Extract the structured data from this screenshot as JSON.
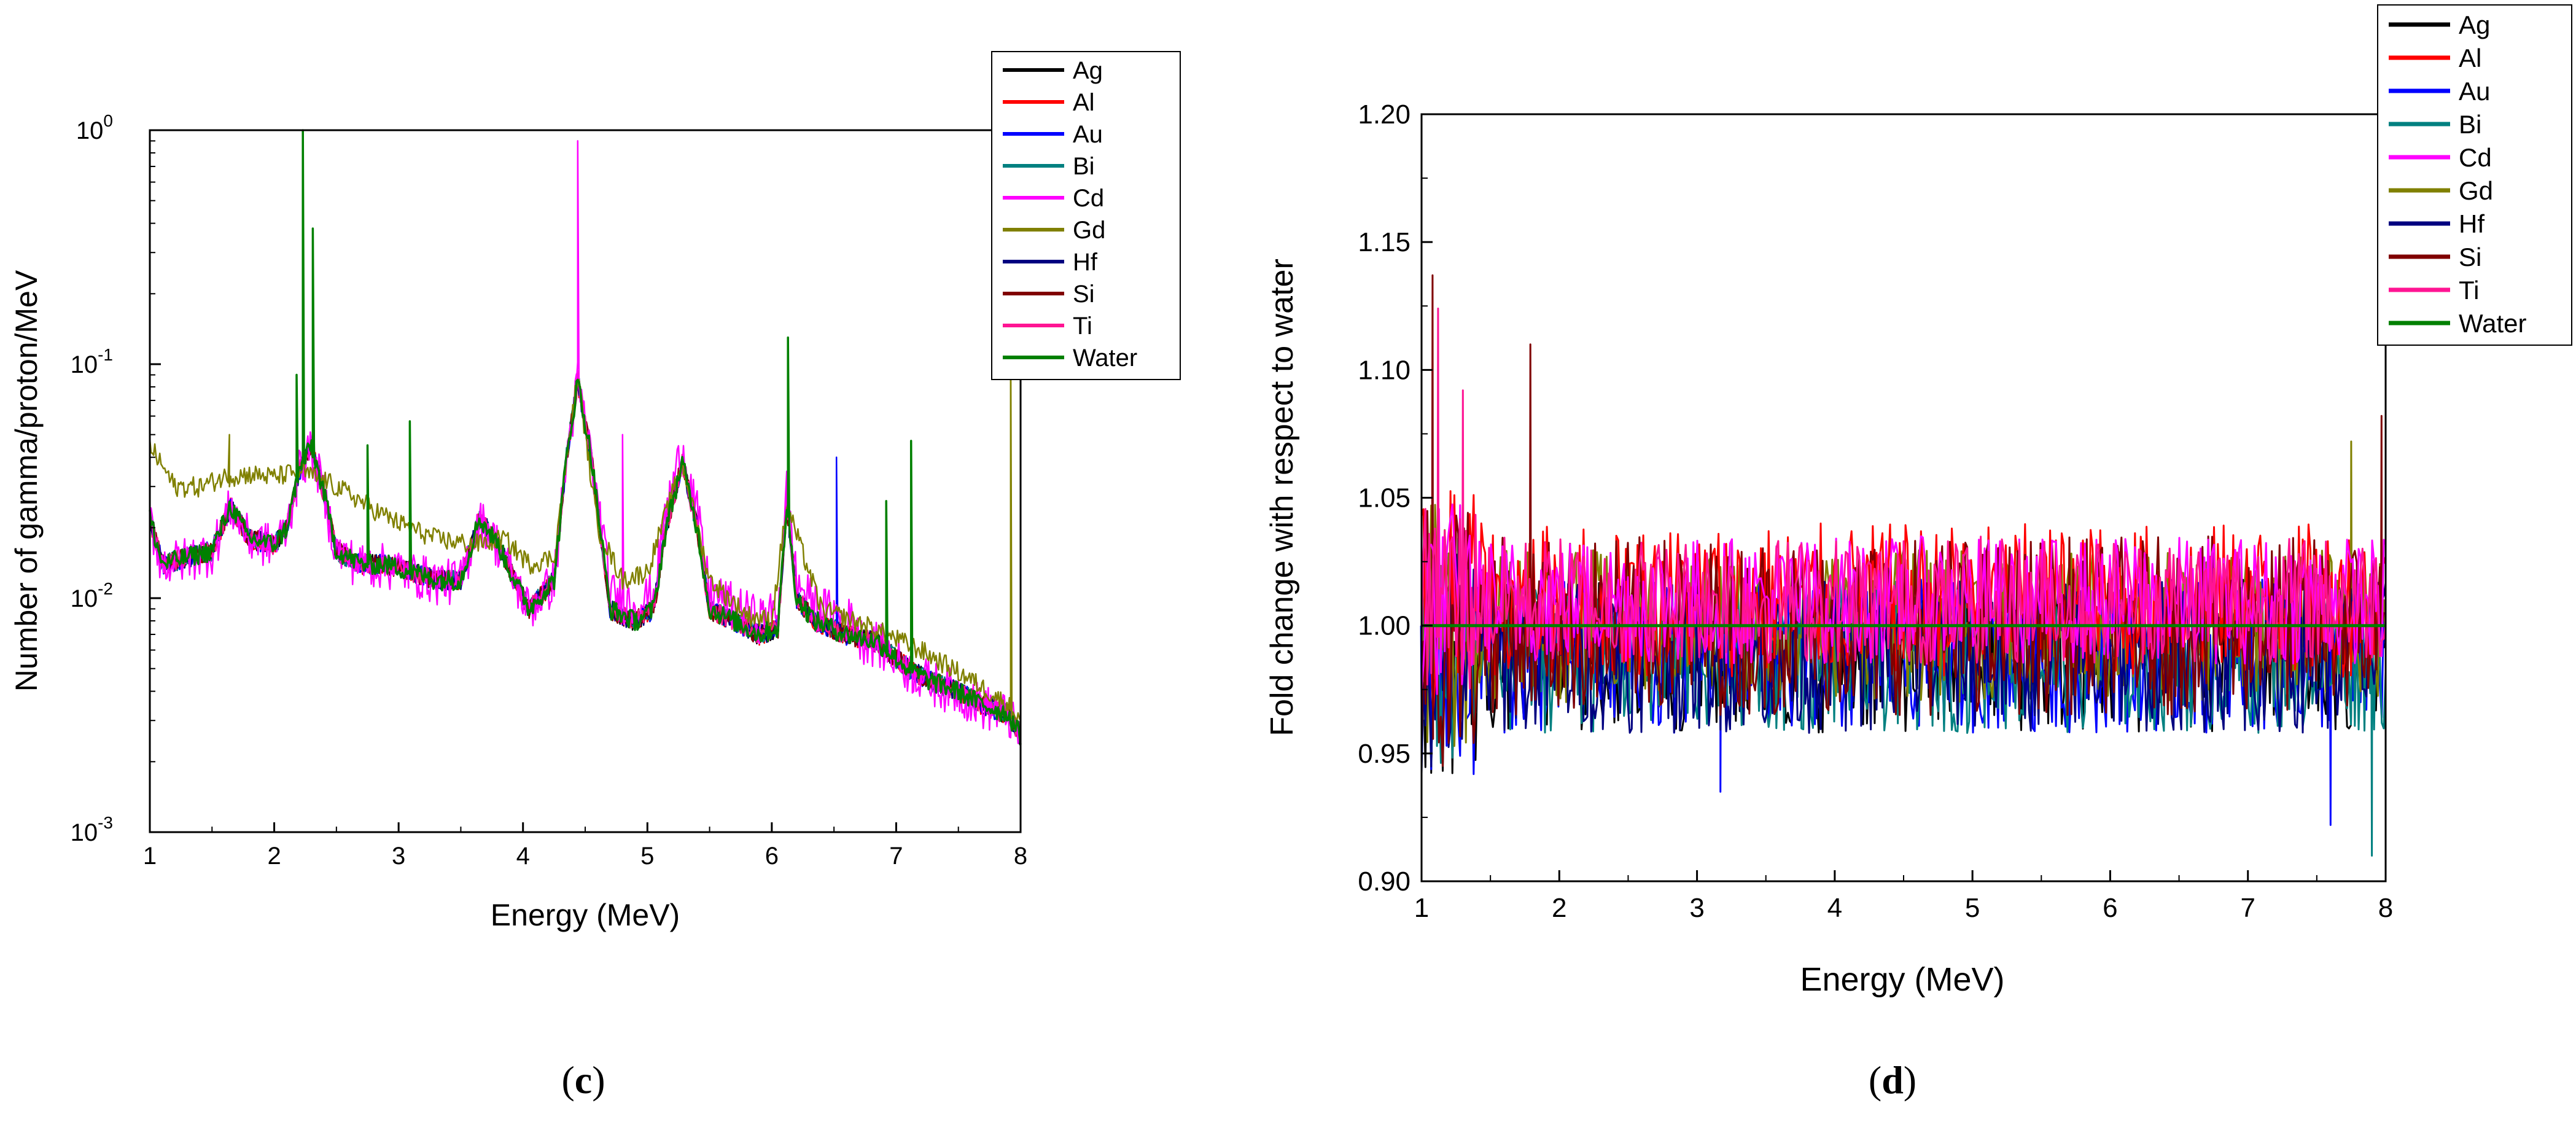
{
  "chart_data": [
    {
      "type": "line",
      "panel_label": "c",
      "title": "",
      "xlabel": "Energy (MeV)",
      "ylabel": "Number of gamma/proton/MeV",
      "xlim": [
        1,
        8
      ],
      "ylim": [
        0.001,
        1
      ],
      "yscale": "log",
      "x_ticks": [
        "1",
        "2",
        "3",
        "4",
        "5",
        "6",
        "7",
        "8"
      ],
      "y_ticks": [
        {
          "value": 0.001,
          "base": "10",
          "exp": "-3"
        },
        {
          "value": 0.01,
          "base": "10",
          "exp": "-2"
        },
        {
          "value": 0.1,
          "base": "10",
          "exp": "-1"
        },
        {
          "value": 1,
          "base": "10",
          "exp": "0"
        }
      ],
      "legend_position": "top-right",
      "series": [
        {
          "name": "Ag",
          "color": "#000000"
        },
        {
          "name": "Al",
          "color": "#ff0000"
        },
        {
          "name": "Au",
          "color": "#0000ff"
        },
        {
          "name": "Bi",
          "color": "#008080"
        },
        {
          "name": "Cd",
          "color": "#ff00ff"
        },
        {
          "name": "Gd",
          "color": "#808000"
        },
        {
          "name": "Hf",
          "color": "#000080"
        },
        {
          "name": "Si",
          "color": "#800000"
        },
        {
          "name": "Ti",
          "color": "#ff1493"
        },
        {
          "name": "Water",
          "color": "#008000"
        }
      ],
      "baseline_points": [
        [
          1.0,
          0.022
        ],
        [
          1.1,
          0.014
        ],
        [
          1.3,
          0.015
        ],
        [
          1.5,
          0.016
        ],
        [
          1.65,
          0.025
        ],
        [
          1.8,
          0.018
        ],
        [
          2.0,
          0.017
        ],
        [
          2.1,
          0.02
        ],
        [
          2.2,
          0.035
        ],
        [
          2.3,
          0.045
        ],
        [
          2.4,
          0.028
        ],
        [
          2.5,
          0.016
        ],
        [
          2.7,
          0.014
        ],
        [
          2.9,
          0.014
        ],
        [
          3.1,
          0.013
        ],
        [
          3.3,
          0.012
        ],
        [
          3.5,
          0.012
        ],
        [
          3.65,
          0.022
        ],
        [
          3.8,
          0.017
        ],
        [
          3.9,
          0.013
        ],
        [
          4.05,
          0.009
        ],
        [
          4.25,
          0.012
        ],
        [
          4.35,
          0.04
        ],
        [
          4.44,
          0.085
        ],
        [
          4.55,
          0.04
        ],
        [
          4.7,
          0.009
        ],
        [
          4.9,
          0.008
        ],
        [
          5.05,
          0.009
        ],
        [
          5.15,
          0.02
        ],
        [
          5.28,
          0.038
        ],
        [
          5.4,
          0.02
        ],
        [
          5.5,
          0.009
        ],
        [
          5.7,
          0.008
        ],
        [
          5.9,
          0.007
        ],
        [
          6.05,
          0.0075
        ],
        [
          6.12,
          0.025
        ],
        [
          6.2,
          0.01
        ],
        [
          6.35,
          0.008
        ],
        [
          6.6,
          0.007
        ],
        [
          6.85,
          0.0065
        ],
        [
          7.1,
          0.005
        ],
        [
          7.25,
          0.0045
        ],
        [
          7.5,
          0.004
        ],
        [
          7.7,
          0.0035
        ],
        [
          7.9,
          0.0032
        ],
        [
          8.0,
          0.0026
        ]
      ],
      "gd_points": [
        [
          1.0,
          0.045
        ],
        [
          1.2,
          0.03
        ],
        [
          1.4,
          0.03
        ],
        [
          1.6,
          0.033
        ],
        [
          1.8,
          0.034
        ],
        [
          2.0,
          0.033
        ],
        [
          2.2,
          0.035
        ],
        [
          2.4,
          0.032
        ],
        [
          2.6,
          0.028
        ],
        [
          2.8,
          0.024
        ],
        [
          3.0,
          0.021
        ],
        [
          3.3,
          0.018
        ],
        [
          3.6,
          0.017
        ],
        [
          3.85,
          0.018
        ],
        [
          4.05,
          0.014
        ],
        [
          4.25,
          0.015
        ],
        [
          4.44,
          0.09
        ],
        [
          4.6,
          0.02
        ],
        [
          4.8,
          0.012
        ],
        [
          5.0,
          0.013
        ],
        [
          5.28,
          0.038
        ],
        [
          5.5,
          0.012
        ],
        [
          5.8,
          0.0085
        ],
        [
          6.0,
          0.008
        ],
        [
          6.12,
          0.025
        ],
        [
          6.4,
          0.009
        ],
        [
          6.8,
          0.0075
        ],
        [
          7.2,
          0.006
        ],
        [
          7.6,
          0.0045
        ],
        [
          7.9,
          0.0035
        ],
        [
          8.0,
          0.003
        ]
      ],
      "peaks": [
        {
          "energy": 1.64,
          "value": 0.05,
          "series": "Gd"
        },
        {
          "energy": 2.18,
          "value": 0.09,
          "series": "Water"
        },
        {
          "energy": 2.23,
          "value": 1.0,
          "series": "Water"
        },
        {
          "energy": 2.31,
          "value": 0.38,
          "series": "Water"
        },
        {
          "energy": 2.75,
          "value": 0.045,
          "series": "Water"
        },
        {
          "energy": 3.09,
          "value": 0.057,
          "series": "Water"
        },
        {
          "energy": 4.44,
          "value": 0.9,
          "series": "Cd"
        },
        {
          "energy": 4.8,
          "value": 0.05,
          "series": "Cd"
        },
        {
          "energy": 6.13,
          "value": 0.13,
          "series": "Water"
        },
        {
          "energy": 6.52,
          "value": 0.04,
          "series": "Au"
        },
        {
          "energy": 6.92,
          "value": 0.026,
          "series": "Water"
        },
        {
          "energy": 7.12,
          "value": 0.047,
          "series": "Water"
        },
        {
          "energy": 7.92,
          "value": 0.155,
          "series": "Gd"
        }
      ]
    },
    {
      "type": "line",
      "panel_label": "d",
      "title": "",
      "xlabel": "Energy (MeV)",
      "ylabel": "Fold change with respect to water",
      "xlim": [
        1,
        8
      ],
      "ylim": [
        0.9,
        1.2
      ],
      "x_ticks": [
        "1",
        "2",
        "3",
        "4",
        "5",
        "6",
        "7",
        "8"
      ],
      "y_ticks": [
        "0.90",
        "0.95",
        "1.00",
        "1.05",
        "1.10",
        "1.15",
        "1.20"
      ],
      "legend_position": "top-right",
      "series": [
        {
          "name": "Ag",
          "color": "#000000",
          "amplitude": 0.03
        },
        {
          "name": "Al",
          "color": "#ff0000",
          "amplitude": 0.03
        },
        {
          "name": "Au",
          "color": "#0000ff",
          "amplitude": 0.03
        },
        {
          "name": "Bi",
          "color": "#008080",
          "amplitude": 0.03
        },
        {
          "name": "Cd",
          "color": "#ff00ff",
          "amplitude": 0.025
        },
        {
          "name": "Gd",
          "color": "#808000",
          "amplitude": 0.03
        },
        {
          "name": "Hf",
          "color": "#000080",
          "amplitude": 0.03
        },
        {
          "name": "Si",
          "color": "#800000",
          "amplitude": 0.035
        },
        {
          "name": "Ti",
          "color": "#ff1493",
          "amplitude": 0.025
        },
        {
          "name": "Water",
          "color": "#008000",
          "amplitude": 0
        }
      ],
      "spikes": [
        {
          "energy": 1.08,
          "value": 1.137,
          "series": "Si"
        },
        {
          "energy": 1.12,
          "value": 1.124,
          "series": "Ti"
        },
        {
          "energy": 1.79,
          "value": 1.11,
          "series": "Si"
        },
        {
          "energy": 1.3,
          "value": 1.092,
          "series": "Ti"
        },
        {
          "energy": 7.97,
          "value": 1.082,
          "series": "Si"
        },
        {
          "energy": 7.75,
          "value": 1.072,
          "series": "Gd"
        },
        {
          "energy": 7.9,
          "value": 0.91,
          "series": "Bi"
        },
        {
          "energy": 7.6,
          "value": 0.922,
          "series": "Au"
        },
        {
          "energy": 3.17,
          "value": 0.935,
          "series": "Au"
        },
        {
          "energy": 1.0,
          "value": 0.95,
          "series": "Au"
        }
      ]
    }
  ],
  "captions": {
    "c": "c",
    "d": "d"
  }
}
